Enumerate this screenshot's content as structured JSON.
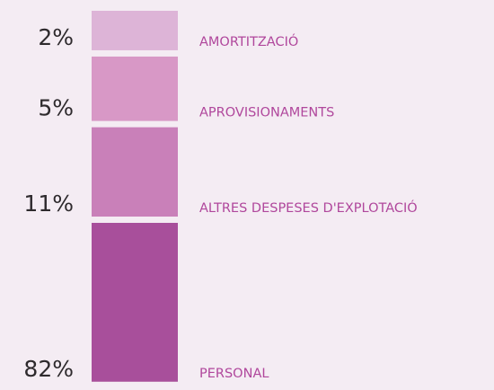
{
  "chart_data": {
    "type": "stacked-bar",
    "categories": [
      "AMORTITZACIÓ",
      "APROVISIONAMENTS",
      "ALTRES DESPESES D'EXPLOTACIÓ",
      "PERSONAL"
    ],
    "values": [
      2,
      5,
      11,
      82
    ],
    "value_labels": [
      "2%",
      "5%",
      "11%",
      "82%"
    ],
    "colors": [
      "#ddb4d7",
      "#d898c6",
      "#c980b9",
      "#a84f9b"
    ]
  }
}
